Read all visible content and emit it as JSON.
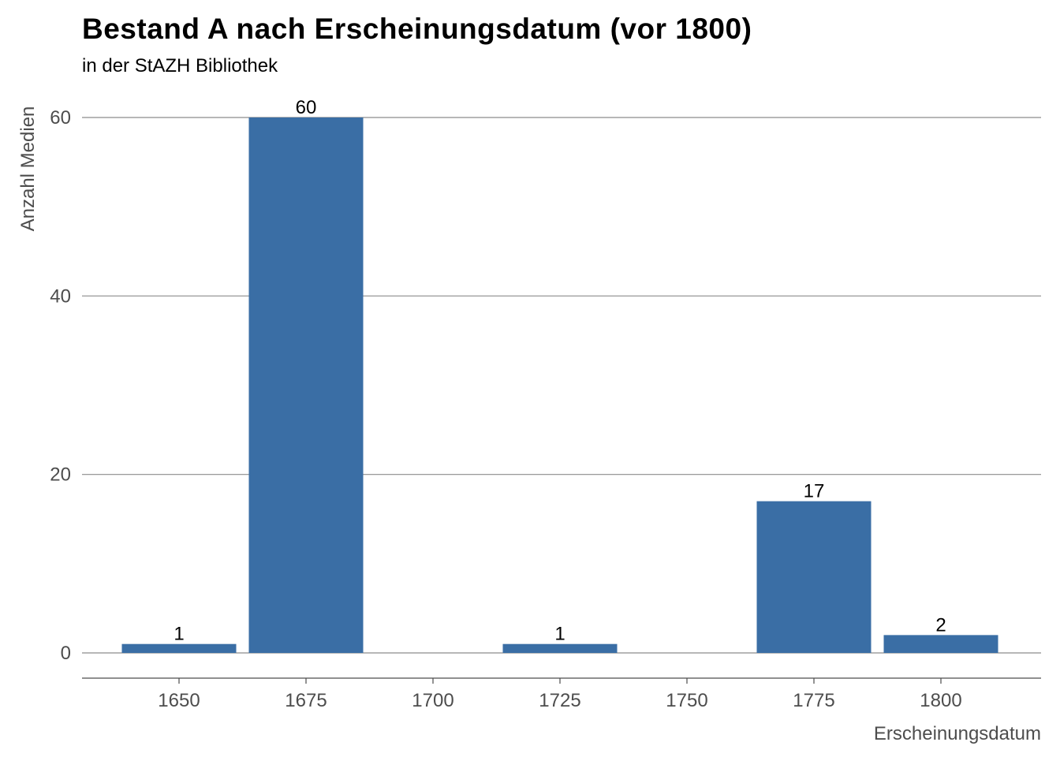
{
  "chart_data": {
    "type": "bar",
    "title": "Bestand A nach Erscheinungsdatum (vor 1800)",
    "subtitle": "in der StAZH Bibliothek",
    "xlabel": "Erscheinungsdatum",
    "ylabel": "Anzahl Medien",
    "x": [
      1650,
      1675,
      1725,
      1775,
      1800
    ],
    "values": [
      1,
      60,
      1,
      17,
      2
    ],
    "data_labels": [
      "1",
      "60",
      "1",
      "17",
      "2"
    ],
    "bar_width_years": 25,
    "xlim": [
      1630,
      1820
    ],
    "ylim": [
      0,
      60
    ],
    "xticks": [
      1650,
      1675,
      1700,
      1725,
      1750,
      1775,
      1800
    ],
    "yticks": [
      0,
      20,
      40,
      60
    ],
    "grid": "horizontal",
    "bar_color": "#3a6ea5",
    "grid_color": "#8c8c8c",
    "axis_color": "#4d4d4d"
  }
}
